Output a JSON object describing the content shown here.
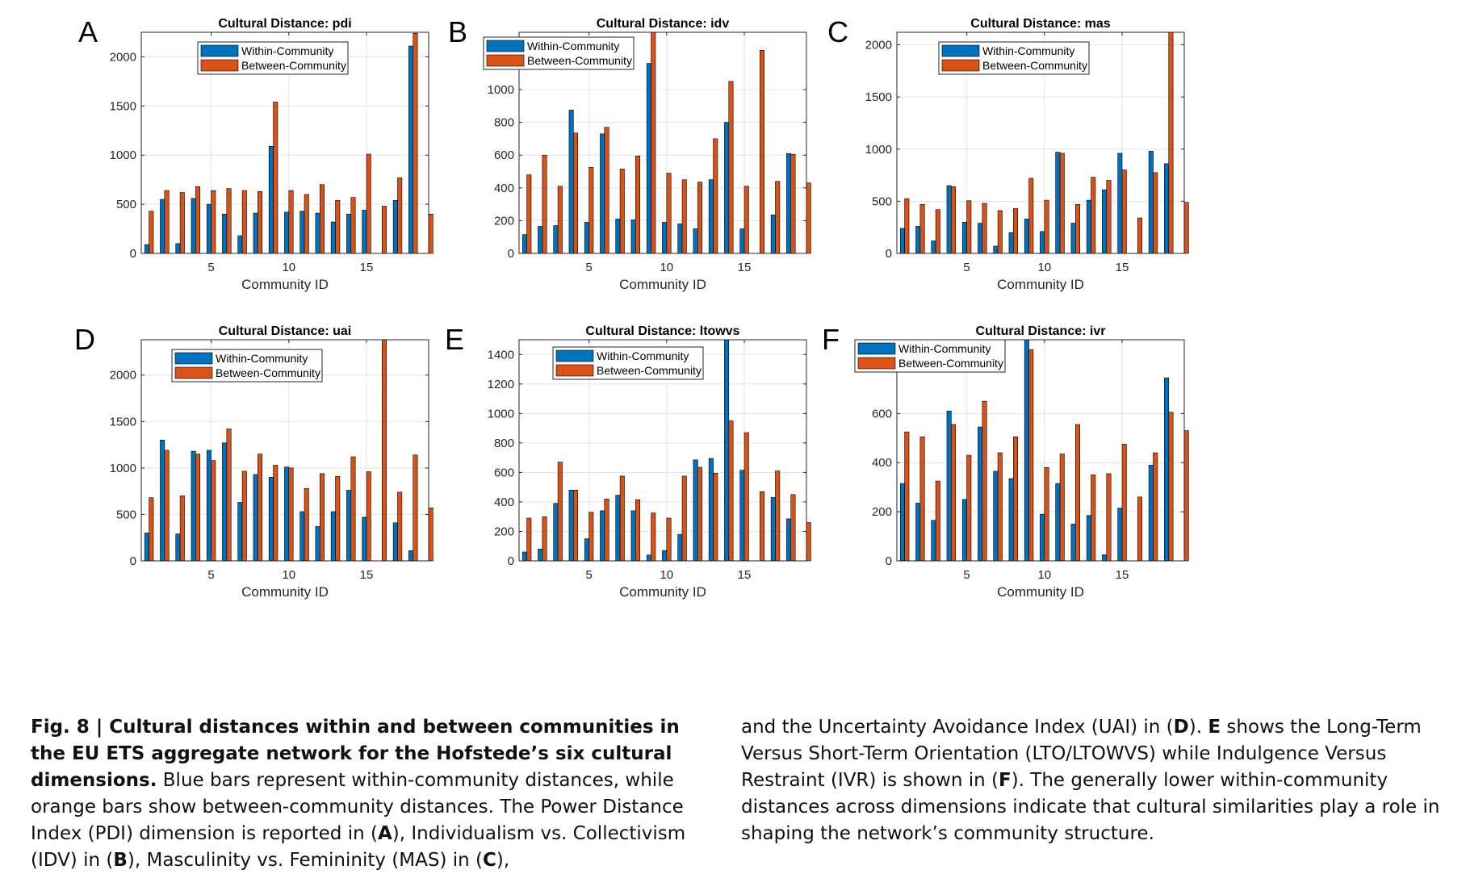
{
  "chart_data": [
    {
      "panel": "A",
      "type": "bar",
      "title": "Cultural Distance: pdi",
      "xlabel": "Community ID",
      "ylabel": "",
      "categories": [
        1,
        2,
        3,
        4,
        5,
        6,
        7,
        8,
        9,
        10,
        11,
        12,
        13,
        14,
        15,
        16,
        17,
        18,
        19
      ],
      "x_ticks": [
        5,
        10,
        15
      ],
      "xlim": [
        0.5,
        19.0
      ],
      "ylim": [
        0,
        2250
      ],
      "y_ticks": [
        0,
        500,
        1000,
        1500,
        2000
      ],
      "grid": true,
      "legend_position": "top-center",
      "series": [
        {
          "name": "Within-Community",
          "color": "#0072BD",
          "values": [
            90,
            550,
            100,
            560,
            500,
            400,
            180,
            410,
            1090,
            420,
            430,
            410,
            320,
            400,
            440,
            null,
            540,
            2110,
            null
          ]
        },
        {
          "name": "Between-Community",
          "color": "#D95319",
          "values": [
            430,
            640,
            620,
            680,
            640,
            660,
            640,
            630,
            1540,
            640,
            600,
            700,
            540,
            570,
            1010,
            480,
            770,
            2240,
            400
          ]
        }
      ]
    },
    {
      "panel": "B",
      "type": "bar",
      "title": "Cultural Distance: idv",
      "xlabel": "Community ID",
      "ylabel": "",
      "categories": [
        1,
        2,
        3,
        4,
        5,
        6,
        7,
        8,
        9,
        10,
        11,
        12,
        13,
        14,
        15,
        16,
        17,
        18,
        19
      ],
      "x_ticks": [
        5,
        10,
        15
      ],
      "xlim": [
        0.5,
        19.0
      ],
      "ylim": [
        0,
        1350
      ],
      "y_ticks": [
        0,
        200,
        400,
        600,
        800,
        1000
      ],
      "grid": true,
      "legend_position": "top-left",
      "series": [
        {
          "name": "Within-Community",
          "color": "#0072BD",
          "values": [
            115,
            165,
            170,
            875,
            190,
            730,
            210,
            205,
            1160,
            190,
            180,
            150,
            450,
            800,
            150,
            null,
            235,
            610,
            null
          ]
        },
        {
          "name": "Between-Community",
          "color": "#D95319",
          "values": [
            480,
            600,
            410,
            735,
            525,
            770,
            515,
            595,
            1350,
            490,
            450,
            435,
            700,
            1050,
            410,
            1240,
            440,
            605,
            430
          ]
        }
      ]
    },
    {
      "panel": "C",
      "type": "bar",
      "title": "Cultural Distance: mas",
      "xlabel": "Community ID",
      "ylabel": "",
      "categories": [
        1,
        2,
        3,
        4,
        5,
        6,
        7,
        8,
        9,
        10,
        11,
        12,
        13,
        14,
        15,
        16,
        17,
        18,
        19
      ],
      "x_ticks": [
        5,
        10,
        15
      ],
      "xlim": [
        0.5,
        19.0
      ],
      "ylim": [
        0,
        2120
      ],
      "y_ticks": [
        0,
        500,
        1000,
        1500,
        2000
      ],
      "grid": true,
      "legend_position": "top-left",
      "series": [
        {
          "name": "Within-Community",
          "color": "#0072BD",
          "values": [
            240,
            260,
            120,
            650,
            300,
            290,
            70,
            200,
            330,
            210,
            970,
            290,
            510,
            610,
            960,
            null,
            980,
            860,
            null
          ]
        },
        {
          "name": "Between-Community",
          "color": "#D95319",
          "values": [
            525,
            470,
            420,
            640,
            505,
            480,
            410,
            430,
            720,
            510,
            960,
            470,
            730,
            700,
            800,
            340,
            775,
            2120,
            490
          ]
        }
      ]
    },
    {
      "panel": "D",
      "type": "bar",
      "title": "Cultural Distance: uai",
      "xlabel": "Community ID",
      "ylabel": "",
      "categories": [
        1,
        2,
        3,
        4,
        5,
        6,
        7,
        8,
        9,
        10,
        11,
        12,
        13,
        14,
        15,
        16,
        17,
        18,
        19
      ],
      "x_ticks": [
        5,
        10,
        15
      ],
      "xlim": [
        0.5,
        19.0
      ],
      "ylim": [
        0,
        2380
      ],
      "y_ticks": [
        0,
        500,
        1000,
        1500,
        2000
      ],
      "grid": true,
      "legend_position": "top-left",
      "series": [
        {
          "name": "Within-Community",
          "color": "#0072BD",
          "values": [
            300,
            1300,
            290,
            1180,
            1190,
            1270,
            630,
            930,
            900,
            1010,
            530,
            370,
            530,
            760,
            470,
            null,
            410,
            110,
            null
          ]
        },
        {
          "name": "Between-Community",
          "color": "#D95319",
          "values": [
            680,
            1190,
            700,
            1150,
            1080,
            1420,
            965,
            1150,
            1030,
            1000,
            780,
            940,
            910,
            1120,
            960,
            2380,
            740,
            1140,
            570
          ]
        }
      ]
    },
    {
      "panel": "E",
      "type": "bar",
      "title": "Cultural Distance: ltowvs",
      "xlabel": "Community ID",
      "ylabel": "",
      "categories": [
        1,
        2,
        3,
        4,
        5,
        6,
        7,
        8,
        9,
        10,
        11,
        12,
        13,
        14,
        15,
        16,
        17,
        18,
        19
      ],
      "x_ticks": [
        5,
        10,
        15
      ],
      "xlim": [
        0.5,
        19.0
      ],
      "ylim": [
        0,
        1500
      ],
      "y_ticks": [
        0,
        200,
        400,
        600,
        800,
        1000,
        1200,
        1400
      ],
      "grid": true,
      "legend_position": "top-left",
      "series": [
        {
          "name": "Within-Community",
          "color": "#0072BD",
          "values": [
            60,
            80,
            390,
            480,
            150,
            340,
            445,
            340,
            40,
            70,
            180,
            685,
            695,
            1500,
            615,
            null,
            430,
            285,
            null
          ]
        },
        {
          "name": "Between-Community",
          "color": "#D95319",
          "values": [
            290,
            300,
            670,
            480,
            330,
            420,
            575,
            415,
            325,
            290,
            575,
            635,
            595,
            950,
            870,
            470,
            610,
            450,
            260
          ]
        }
      ]
    },
    {
      "panel": "F",
      "type": "bar",
      "title": "Cultural Distance: ivr",
      "xlabel": "Community ID",
      "ylabel": "",
      "categories": [
        1,
        2,
        3,
        4,
        5,
        6,
        7,
        8,
        9,
        10,
        11,
        12,
        13,
        14,
        15,
        16,
        17,
        18,
        19
      ],
      "x_ticks": [
        5,
        10,
        15
      ],
      "xlim": [
        0.5,
        19.0
      ],
      "ylim": [
        0,
        900
      ],
      "y_ticks": [
        0,
        200,
        400,
        600
      ],
      "grid": true,
      "legend_position": "top-left",
      "series": [
        {
          "name": "Within-Community",
          "color": "#0072BD",
          "values": [
            315,
            235,
            165,
            610,
            250,
            545,
            365,
            335,
            900,
            190,
            315,
            150,
            185,
            25,
            215,
            null,
            390,
            745,
            null
          ]
        },
        {
          "name": "Between-Community",
          "color": "#D95319",
          "values": [
            525,
            505,
            325,
            555,
            430,
            650,
            440,
            505,
            860,
            380,
            435,
            555,
            350,
            355,
            475,
            260,
            440,
            605,
            530
          ]
        }
      ]
    }
  ],
  "caption": {
    "lead": "Fig. 8 | Cultural distances within and between communities in the EU ETS aggregate network for the Hofstede’s six cultural dimensions.",
    "p1": " Blue bars represent within-community distances, while orange bars show between-community distances. The Power Distance Index (PDI) dimension is reported in (",
    "A": "A",
    "p2": "), Individualism vs. Collectivism (IDV) in (",
    "B": "B",
    "p3": "), Masculinity vs. Femininity (MAS) in (",
    "C": "C",
    "p4": "), and the Uncertainty Avoidance Index (UAI) in (",
    "D": "D",
    "p5": "). ",
    "E": "E",
    "p6": " shows the Long-Term Versus Short-Term Orientation (LTO/LTOWVS) while Indulgence Versus Restraint (IVR) is shown in (",
    "F": "F",
    "p7": "). The generally lower within-community distances across dimensions indicate that cultural similarities play a role in shaping the network’s community structure."
  }
}
